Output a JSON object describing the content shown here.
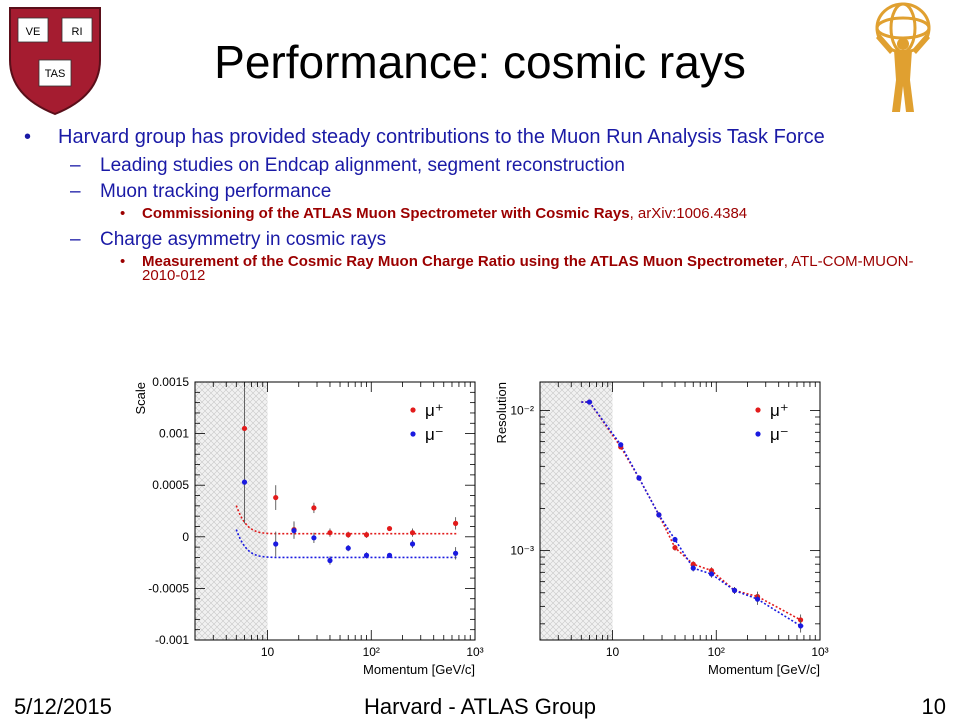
{
  "slide": {
    "title": "Performance: cosmic rays",
    "bullets": {
      "b1": "Harvard group has provided steady contributions to the Muon Run Analysis Task Force",
      "b1a": "Leading studies on Endcap alignment, segment reconstruction",
      "b1b": "Muon tracking performance",
      "b1b_ref_title": "Commissioning of the ATLAS Muon Spectrometer with Cosmic Rays",
      "b1b_ref_id": ", arXiv:1006.4384",
      "b1c": "Charge asymmetry in cosmic rays",
      "b1c_ref_title": "Measurement of the Cosmic Ray Muon Charge Ratio using the ATLAS Muon Spectrometer",
      "b1c_ref_id": ", ATL-COM-MUON-2010-012"
    },
    "marks": {
      "l1": "•",
      "l2": "–",
      "l3": "•"
    }
  },
  "logos": {
    "left_shield": {
      "icon": "harvard-veritas-shield-icon",
      "text": [
        "VE",
        "RI",
        "TAS"
      ],
      "color": "#a51c30"
    },
    "right": {
      "icon": "atlas-experiment-logo-icon",
      "color": "#e0a030"
    }
  },
  "footer": {
    "date": "5/12/2015",
    "center": "Harvard - ATLAS Group",
    "page": "10"
  },
  "colors": {
    "mu_plus": "#e21b1b",
    "mu_minus": "#1a1ae0",
    "text_blue": "#1a1aa6",
    "text_red": "#9b0000"
  },
  "chart_data": [
    {
      "type": "scatter",
      "ylabel": "Scale",
      "xlabel": "Momentum [GeV/c]",
      "xscale": "log",
      "xlim": [
        2,
        1000
      ],
      "ylim": [
        -0.001,
        0.0015
      ],
      "x_ticks": [
        "10",
        "10²",
        "10³"
      ],
      "y_ticks": [
        "0.0015",
        "0.001",
        "0.0005",
        "0",
        "-0.0005",
        "-0.001"
      ],
      "shaded_region_x": [
        2,
        10
      ],
      "legend": "top-right",
      "series": [
        {
          "name": "μ⁺",
          "color": "#e21b1b",
          "x": [
            6,
            12,
            18,
            28,
            40,
            60,
            90,
            150,
            250,
            650
          ],
          "y": [
            0.00105,
            0.00038,
            7e-05,
            0.00028,
            4e-05,
            2e-05,
            2e-05,
            8e-05,
            4e-05,
            0.00013
          ],
          "err": [
            0.0004,
            0.00012,
            8e-05,
            5e-05,
            4e-05,
            3e-05,
            3e-05,
            2e-05,
            4e-05,
            6e-05
          ],
          "fit": {
            "a": 3e-05,
            "b": 0.0245,
            "c": 0.9
          }
        },
        {
          "name": "μ⁻",
          "color": "#1a1ae0",
          "x": [
            6,
            12,
            18,
            28,
            40,
            60,
            90,
            150,
            250,
            650
          ],
          "y": [
            0.00053,
            -7e-05,
            6e-05,
            -1e-05,
            -0.00023,
            -0.00011,
            -0.00018,
            -0.00018,
            -7e-05,
            -0.00016
          ],
          "err": [
            0.0004,
            0.00012,
            8e-05,
            5e-05,
            4e-05,
            3e-05,
            3e-05,
            2e-05,
            4e-05,
            6e-05
          ],
          "fit": {
            "a": -0.0002,
            "b": 0.0243,
            "c": 0.9
          }
        }
      ]
    },
    {
      "type": "scatter",
      "ylabel": "Resolution",
      "xlabel": "Momentum [GeV/c]",
      "xscale": "log",
      "yscale": "log",
      "xlim": [
        2,
        1000
      ],
      "ylim": [
        0.00023,
        0.016
      ],
      "x_ticks": [
        "10",
        "10²",
        "10³"
      ],
      "y_ticks": [
        "10⁻²",
        "10⁻³"
      ],
      "shaded_region_x": [
        2,
        10
      ],
      "legend": "top-right",
      "series": [
        {
          "name": "μ⁺",
          "color": "#e21b1b",
          "x": [
            6,
            12,
            18,
            28,
            40,
            60,
            90,
            150,
            250,
            650
          ],
          "y": [
            0.0115,
            0.0055,
            0.0033,
            0.0018,
            0.00105,
            0.0008,
            0.00072,
            0.00052,
            0.00047,
            0.00032
          ],
          "err": [
            0.0003,
            0.0002,
            0.00012,
            8e-05,
            5e-05,
            4e-05,
            4e-05,
            3e-05,
            4e-05,
            3e-05
          ]
        },
        {
          "name": "μ⁻",
          "color": "#1a1ae0",
          "x": [
            6,
            12,
            18,
            28,
            40,
            60,
            90,
            150,
            250,
            650
          ],
          "y": [
            0.0115,
            0.0057,
            0.0033,
            0.0018,
            0.0012,
            0.00075,
            0.00068,
            0.00052,
            0.00045,
            0.00029
          ],
          "err": [
            0.0003,
            0.0002,
            0.00012,
            8e-05,
            5e-05,
            4e-05,
            4e-05,
            3e-05,
            4e-05,
            3e-05
          ]
        }
      ]
    }
  ]
}
